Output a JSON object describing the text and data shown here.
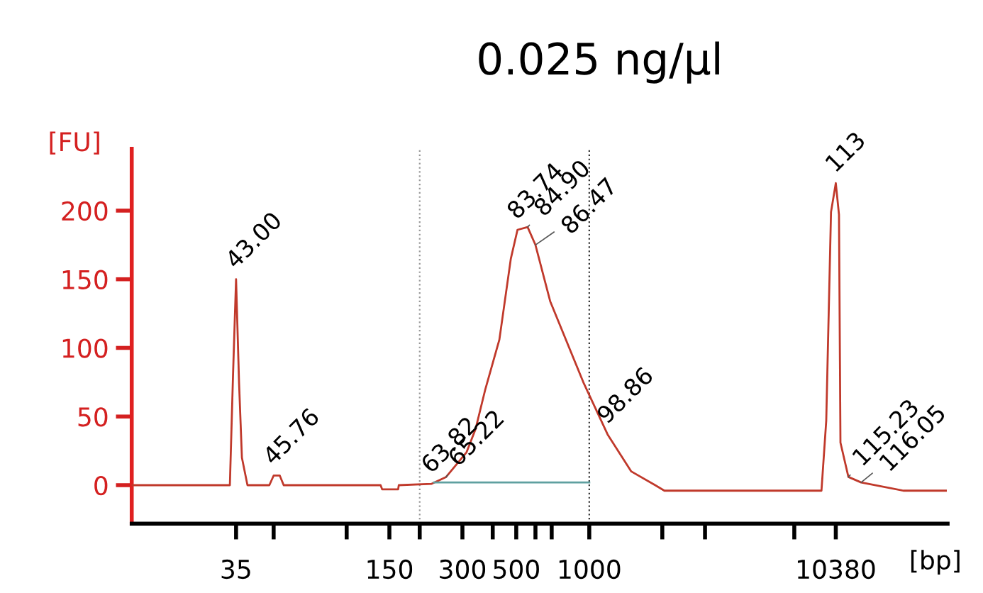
{
  "chart_data": {
    "type": "line",
    "title": "0.025 ng/μl",
    "xlabel": "[bp]",
    "ylabel": "[FU]",
    "log": "x",
    "xlim": [
      13,
      30000
    ],
    "ylim": [
      -28,
      245
    ],
    "xticks": [
      35,
      {
        "value": 50,
        "label": null
      },
      {
        "value": 100,
        "label": null
      },
      150,
      {
        "value": 200,
        "label": null
      },
      300,
      {
        "value": 400,
        "label": null
      },
      500,
      {
        "value": 600,
        "label": null
      },
      {
        "value": 700,
        "label": null
      },
      1000,
      {
        "value": 2000,
        "label": null
      },
      {
        "value": 3000,
        "label": null
      },
      {
        "value": 7000,
        "label": null
      },
      10380
    ],
    "yticks": [
      0,
      50,
      100,
      150,
      200
    ],
    "grid": false,
    "legend": false,
    "marker": "none",
    "line_style": "solid",
    "series": [
      {
        "color": "#c0392b",
        "x": [
          13,
          33,
          34,
          35,
          36,
          37,
          39,
          48,
          50,
          53,
          55,
          138,
          140,
          163,
          164,
          224,
          257,
          312,
          340,
          373,
          426,
          475,
          506,
          557,
          600,
          690,
          945,
          1190,
          1490,
          1870,
          2040,
          9060,
          9480,
          9920,
          10380,
          10700,
          10850,
          11700,
          13200,
          19700,
          29500
        ],
        "values": [
          0,
          0,
          80,
          150,
          75,
          20,
          0,
          0,
          7,
          7,
          0,
          0,
          -3,
          -3,
          0,
          1,
          6,
          24,
          41,
          70,
          106,
          165,
          186,
          188,
          175,
          134,
          75,
          37,
          10,
          0,
          -4,
          -4,
          47,
          199,
          220,
          197,
          31,
          6,
          2,
          -4,
          -4
        ]
      },
      {
        "color": "#5fa0a0",
        "x": [
          229,
          1000
        ],
        "values": [
          2,
          2
        ]
      }
    ],
    "ref_lines": [
      {
        "axis": "x",
        "value": 200,
        "color": "#999999",
        "line_style": "dotted"
      },
      {
        "axis": "x",
        "value": 1000,
        "color": "#333333",
        "line_style": "dotted"
      }
    ],
    "annotations": [
      {
        "text": "43.00",
        "x": 35,
        "y": 150
      },
      {
        "text": "45.76",
        "x": 50,
        "y": 7
      },
      {
        "text": "63.82",
        "x": 224,
        "y": 1
      },
      {
        "text": "65.22",
        "x": 257,
        "y": 6
      },
      {
        "text": "83.74",
        "x": 506,
        "y": 186
      },
      {
        "text": "84.90",
        "x": 557,
        "y": 188
      },
      {
        "text": "86.47",
        "x": 600,
        "y": 175
      },
      {
        "text": "98.86",
        "x": 1190,
        "y": 37
      },
      {
        "text": "113",
        "x": 10380,
        "y": 220
      },
      {
        "text": "115.23",
        "x": 11700,
        "y": 6
      },
      {
        "text": "116.05",
        "x": 13200,
        "y": 2
      }
    ]
  }
}
